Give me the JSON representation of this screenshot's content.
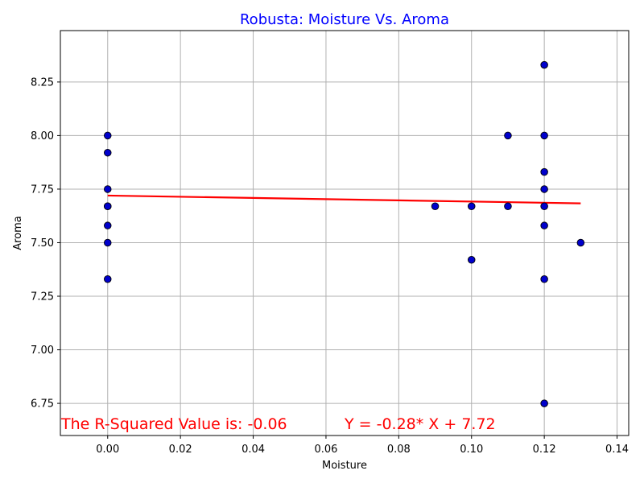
{
  "chart_data": {
    "type": "scatter",
    "title": "Robusta: Moisture Vs. Aroma",
    "xlabel": "Moisture",
    "ylabel": "Aroma",
    "xlim": [
      -0.013,
      0.1432
    ],
    "ylim": [
      6.6,
      8.49
    ],
    "x_ticks": [
      0.0,
      0.02,
      0.04,
      0.06,
      0.08,
      0.1,
      0.12,
      0.14
    ],
    "x_tick_labels": [
      "0.00",
      "0.02",
      "0.04",
      "0.06",
      "0.08",
      "0.10",
      "0.12",
      "0.14"
    ],
    "y_ticks": [
      6.75,
      7.0,
      7.25,
      7.5,
      7.75,
      8.0,
      8.25
    ],
    "y_tick_labels": [
      "6.75",
      "7.00",
      "7.25",
      "7.50",
      "7.75",
      "8.00",
      "8.25"
    ],
    "grid": true,
    "points": {
      "x": [
        0.0,
        0.0,
        0.0,
        0.0,
        0.0,
        0.0,
        0.0,
        0.0,
        0.09,
        0.1,
        0.1,
        0.11,
        0.11,
        0.12,
        0.12,
        0.12,
        0.12,
        0.12,
        0.12,
        0.12,
        0.12,
        0.13
      ],
      "y": [
        8.0,
        7.92,
        7.75,
        7.67,
        7.58,
        7.5,
        7.33,
        7.67,
        7.67,
        7.67,
        7.42,
        8.0,
        7.67,
        8.33,
        8.0,
        7.83,
        7.75,
        7.67,
        7.58,
        7.33,
        6.75,
        7.5
      ]
    },
    "regression": {
      "slope": -0.28,
      "intercept": 7.72,
      "x_range": [
        0.0,
        0.13
      ]
    },
    "annotations": {
      "r_squared": "The R-Squared Value is: -0.06",
      "equation": "Y = -0.28* X + 7.72"
    },
    "colors": {
      "title": "#0000ff",
      "points_fill": "#0000cc",
      "points_edge": "#000000",
      "regression": "#ff0000",
      "annotation": "#ff0000",
      "grid": "#b0b0b0"
    }
  }
}
